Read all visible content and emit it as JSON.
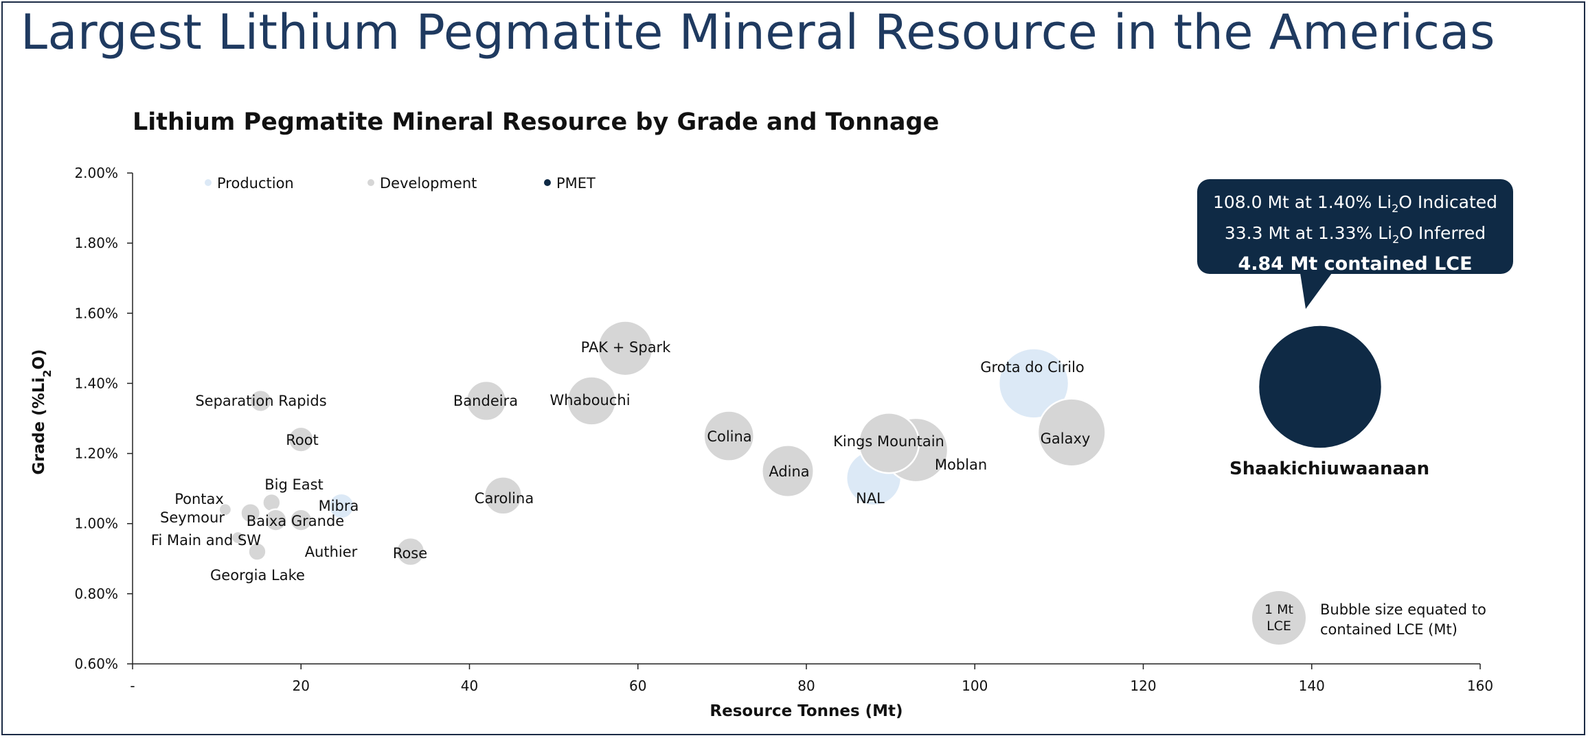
{
  "slide": {
    "title": "Largest Lithium Pegmatite Mineral Resource in the Americas"
  },
  "callout": {
    "line1_pre": "108.0 Mt at 1.40% Li",
    "line1_sub": "2",
    "line1_post": "O Indicated",
    "line2_pre": "33.3 Mt at 1.33% Li",
    "line2_sub": "2",
    "line2_post": "O Inferred",
    "line3": "4.84 Mt contained LCE"
  },
  "size_legend": {
    "circle_line1": "1 Mt",
    "circle_line2": "LCE",
    "text_line1": "Bubble size equated to",
    "text_line2": "contained LCE (Mt)"
  },
  "colors": {
    "production": "#dce9f6",
    "development": "#d6d6d6",
    "pmet": "#0f2a45",
    "title": "#1f3a60"
  },
  "chart_data": {
    "type": "bubble",
    "title": "Lithium Pegmatite Mineral Resource by Grade and Tonnage",
    "xlabel": "Resource Tonnes (Mt)",
    "ylabel_pre": "Grade (%Li",
    "ylabel_sub": "2",
    "ylabel_post": "O)",
    "xlim": [
      0,
      160
    ],
    "ylim": [
      0.6,
      2.0
    ],
    "x_ticks": [
      {
        "value": 0,
        "label": "-"
      },
      {
        "value": 20,
        "label": "20"
      },
      {
        "value": 40,
        "label": "40"
      },
      {
        "value": 60,
        "label": "60"
      },
      {
        "value": 80,
        "label": "80"
      },
      {
        "value": 100,
        "label": "100"
      },
      {
        "value": 120,
        "label": "120"
      },
      {
        "value": 140,
        "label": "140"
      },
      {
        "value": 160,
        "label": "160"
      }
    ],
    "y_ticks": [
      {
        "value": 0.6,
        "label": "0.60%"
      },
      {
        "value": 0.8,
        "label": "0.80%"
      },
      {
        "value": 1.0,
        "label": "1.00%"
      },
      {
        "value": 1.2,
        "label": "1.20%"
      },
      {
        "value": 1.4,
        "label": "1.40%"
      },
      {
        "value": 1.6,
        "label": "1.60%"
      },
      {
        "value": 1.8,
        "label": "1.80%"
      },
      {
        "value": 2.0,
        "label": "2.00%"
      }
    ],
    "legend": [
      {
        "category": "production",
        "label": "Production"
      },
      {
        "category": "development",
        "label": "Development"
      },
      {
        "category": "pmet",
        "label": "PMET"
      }
    ],
    "legend_position": "top-left",
    "grid": false,
    "series": [
      {
        "name": "Separation Rapids",
        "x": 15.2,
        "y": 1.35,
        "lce": 0.15,
        "category": "development"
      },
      {
        "name": "Root",
        "x": 20.0,
        "y": 1.24,
        "lce": 0.2,
        "category": "development"
      },
      {
        "name": "Big East",
        "x": 16.5,
        "y": 1.06,
        "lce": 0.1,
        "category": "development"
      },
      {
        "name": "Pontax",
        "x": 11.0,
        "y": 1.04,
        "lce": 0.05,
        "category": "development"
      },
      {
        "name": "Seymour",
        "x": 14.0,
        "y": 1.03,
        "lce": 0.12,
        "category": "development"
      },
      {
        "name": "Baixa Grande",
        "x": 17.0,
        "y": 1.01,
        "lce": 0.15,
        "category": "development"
      },
      {
        "name": "Mibra",
        "x": 24.8,
        "y": 1.05,
        "lce": 0.2,
        "category": "production"
      },
      {
        "name": "Fi Main and SW",
        "x": 12.5,
        "y": 0.96,
        "lce": 0.05,
        "category": "development"
      },
      {
        "name": "Authier",
        "x": 20.0,
        "y": 1.01,
        "lce": 0.15,
        "category": "development"
      },
      {
        "name": "Georgia Lake",
        "x": 14.8,
        "y": 0.92,
        "lce": 0.1,
        "category": "development"
      },
      {
        "name": "Rose",
        "x": 33.0,
        "y": 0.92,
        "lce": 0.25,
        "category": "development"
      },
      {
        "name": "Bandeira",
        "x": 42.0,
        "y": 1.35,
        "lce": 0.5,
        "category": "development"
      },
      {
        "name": "Carolina",
        "x": 44.0,
        "y": 1.08,
        "lce": 0.45,
        "category": "development"
      },
      {
        "name": "Whabouchi",
        "x": 54.5,
        "y": 1.35,
        "lce": 0.75,
        "category": "development"
      },
      {
        "name": "PAK + Spark",
        "x": 58.5,
        "y": 1.5,
        "lce": 0.95,
        "category": "development"
      },
      {
        "name": "Colina",
        "x": 70.8,
        "y": 1.25,
        "lce": 0.8,
        "category": "development"
      },
      {
        "name": "Adina",
        "x": 77.8,
        "y": 1.15,
        "lce": 0.85,
        "category": "development"
      },
      {
        "name": "NAL",
        "x": 88.0,
        "y": 1.13,
        "lce": 0.95,
        "category": "production"
      },
      {
        "name": "Moblan",
        "x": 93.0,
        "y": 1.21,
        "lce": 1.3,
        "category": "development"
      },
      {
        "name": "Kings Mountain",
        "x": 89.8,
        "y": 1.23,
        "lce": 1.15,
        "category": "development"
      },
      {
        "name": "Grota do Cirilo",
        "x": 107.0,
        "y": 1.4,
        "lce": 1.55,
        "category": "production"
      },
      {
        "name": "Galaxy",
        "x": 111.5,
        "y": 1.26,
        "lce": 1.45,
        "category": "development"
      },
      {
        "name": "Shaakichiuwaanaan",
        "x": 141.0,
        "y": 1.39,
        "lce": 4.84,
        "category": "pmet"
      }
    ]
  }
}
